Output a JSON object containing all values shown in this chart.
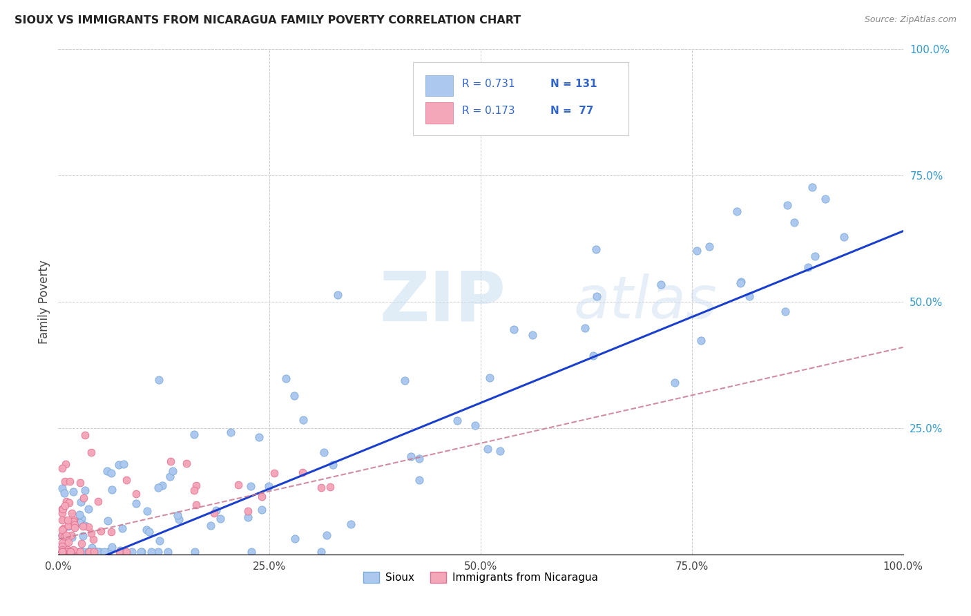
{
  "title": "SIOUX VS IMMIGRANTS FROM NICARAGUA FAMILY POVERTY CORRELATION CHART",
  "source": "Source: ZipAtlas.com",
  "ylabel": "Family Poverty",
  "xlim": [
    0.0,
    1.0
  ],
  "ylim": [
    0.0,
    1.0
  ],
  "xtick_labels": [
    "0.0%",
    "25.0%",
    "50.0%",
    "75.0%",
    "100.0%"
  ],
  "xtick_vals": [
    0.0,
    0.25,
    0.5,
    0.75,
    1.0
  ],
  "ytick_labels": [
    "25.0%",
    "50.0%",
    "75.0%",
    "100.0%"
  ],
  "ytick_vals": [
    0.25,
    0.5,
    0.75,
    1.0
  ],
  "sioux_color": "#adc8ee",
  "sioux_edge": "#7aaad8",
  "nicaragua_color": "#f4a7b9",
  "nicaragua_edge": "#e07090",
  "sioux_R": 0.731,
  "sioux_N": 131,
  "nicaragua_R": 0.173,
  "nicaragua_N": 77,
  "legend_text_color": "#3366cc",
  "sioux_line_color": "#1a3fcc",
  "nicaragua_line_color": "#c87890",
  "watermark_color": "#d8e8f4",
  "background_color": "#ffffff",
  "grid_color": "#cccccc",
  "title_color": "#222222",
  "source_color": "#888888",
  "ylabel_color": "#444444",
  "sioux_line_intercept": -0.04,
  "sioux_line_slope": 0.68,
  "nicaragua_line_intercept": 0.03,
  "nicaragua_line_slope": 0.38
}
